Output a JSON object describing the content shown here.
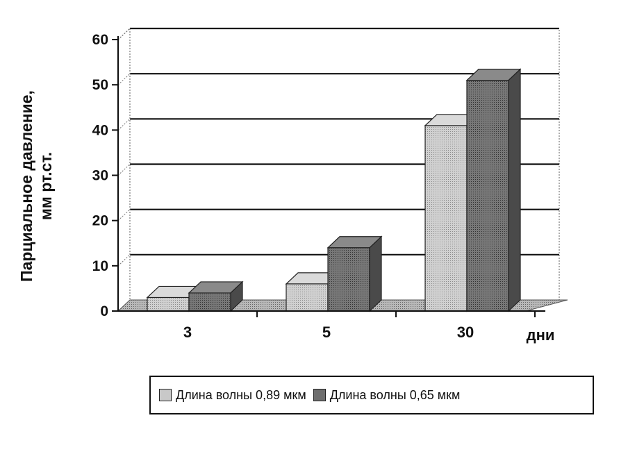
{
  "chart_data": {
    "type": "bar",
    "categories": [
      "3",
      "5",
      "30"
    ],
    "series": [
      {
        "name": "Длина волны 0,89 мкм",
        "values": [
          3,
          6,
          41
        ],
        "color": "#c8c8c8"
      },
      {
        "name": "Длина волны 0,65 мкм",
        "values": [
          4,
          14,
          51
        ],
        "color": "#6e6e6e"
      }
    ],
    "yticks": [
      "0",
      "10",
      "20",
      "30",
      "40",
      "50",
      "60"
    ],
    "ylim": [
      0,
      60
    ],
    "ylabel_line1": "Парциальное давление,",
    "ylabel_line2": "мм рт.ст.",
    "xlabel": "дни",
    "grid": true,
    "legend_position": "bottom"
  }
}
